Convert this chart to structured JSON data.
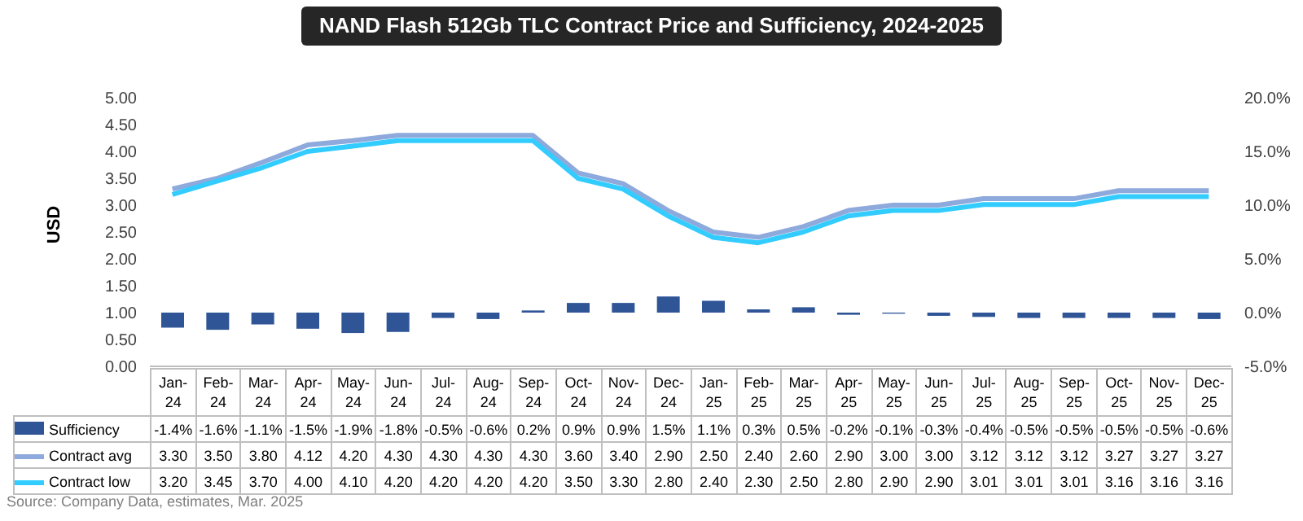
{
  "chart_data": {
    "type": "line",
    "title": "NAND Flash 512Gb TLC Contract Price and Sufficiency, 2024-2025",
    "ylabel": "USD",
    "categories": [
      "Jan-24",
      "Feb-24",
      "Mar-24",
      "Apr-24",
      "May-24",
      "Jun-24",
      "Jul-24",
      "Aug-24",
      "Sep-24",
      "Oct-24",
      "Nov-24",
      "Dec-24",
      "Jan-25",
      "Feb-25",
      "Mar-25",
      "Apr-25",
      "May-25",
      "Jun-25",
      "Jul-25",
      "Aug-25",
      "Sep-25",
      "Oct-25",
      "Nov-25",
      "Dec-25"
    ],
    "series": [
      {
        "name": "Sufficiency",
        "type": "bar",
        "axis": "y2",
        "color": "#2f5597",
        "values": [
          -1.4,
          -1.6,
          -1.1,
          -1.5,
          -1.9,
          -1.8,
          -0.5,
          -0.6,
          0.2,
          0.9,
          0.9,
          1.5,
          1.1,
          0.3,
          0.5,
          -0.2,
          -0.1,
          -0.3,
          -0.4,
          -0.5,
          -0.5,
          -0.5,
          -0.5,
          -0.6
        ],
        "value_labels": [
          "-1.4%",
          "-1.6%",
          "-1.1%",
          "-1.5%",
          "-1.9%",
          "-1.8%",
          "-0.5%",
          "-0.6%",
          "0.2%",
          "0.9%",
          "0.9%",
          "1.5%",
          "1.1%",
          "0.3%",
          "0.5%",
          "-0.2%",
          "-0.1%",
          "-0.3%",
          "-0.4%",
          "-0.5%",
          "-0.5%",
          "-0.5%",
          "-0.5%",
          "-0.6%"
        ]
      },
      {
        "name": "Contract avg",
        "color": "#8ea9db",
        "values": [
          3.3,
          3.5,
          3.8,
          4.12,
          4.2,
          4.3,
          4.3,
          4.3,
          4.3,
          3.6,
          3.4,
          2.9,
          2.5,
          2.4,
          2.6,
          2.9,
          3.0,
          3.0,
          3.12,
          3.12,
          3.12,
          3.27,
          3.27,
          3.27
        ],
        "value_labels": [
          "3.30",
          "3.50",
          "3.80",
          "4.12",
          "4.20",
          "4.30",
          "4.30",
          "4.30",
          "4.30",
          "3.60",
          "3.40",
          "2.90",
          "2.50",
          "2.40",
          "2.60",
          "2.90",
          "3.00",
          "3.00",
          "3.12",
          "3.12",
          "3.12",
          "3.27",
          "3.27",
          "3.27"
        ]
      },
      {
        "name": "Contract low",
        "color": "#33ccff",
        "values": [
          3.2,
          3.45,
          3.7,
          4.0,
          4.1,
          4.2,
          4.2,
          4.2,
          4.2,
          3.5,
          3.3,
          2.8,
          2.4,
          2.3,
          2.5,
          2.8,
          2.9,
          2.9,
          3.01,
          3.01,
          3.01,
          3.16,
          3.16,
          3.16
        ],
        "value_labels": [
          "3.20",
          "3.45",
          "3.70",
          "4.00",
          "4.10",
          "4.20",
          "4.20",
          "4.20",
          "4.20",
          "3.50",
          "3.30",
          "2.80",
          "2.40",
          "2.30",
          "2.50",
          "2.80",
          "2.90",
          "2.90",
          "3.01",
          "3.01",
          "3.01",
          "3.16",
          "3.16",
          "3.16"
        ]
      }
    ],
    "ylim": [
      0,
      5
    ],
    "yticks": [
      {
        "value": 0,
        "label": "0.00"
      },
      {
        "value": 0.5,
        "label": "0.50"
      },
      {
        "value": 1,
        "label": "1.00"
      },
      {
        "value": 1.5,
        "label": "1.50"
      },
      {
        "value": 2,
        "label": "2.00"
      },
      {
        "value": 2.5,
        "label": "2.50"
      },
      {
        "value": 3,
        "label": "3.00"
      },
      {
        "value": 3.5,
        "label": "3.50"
      },
      {
        "value": 4,
        "label": "4.00"
      },
      {
        "value": 4.5,
        "label": "4.50"
      },
      {
        "value": 5,
        "label": "5.00"
      }
    ],
    "y2lim": [
      -5,
      20
    ],
    "y2ticks": [
      {
        "value": -5,
        "label": "-5.0%"
      },
      {
        "value": 0,
        "label": "0.0%"
      },
      {
        "value": 5,
        "label": "5.0%"
      },
      {
        "value": 10,
        "label": "10.0%"
      },
      {
        "value": 15,
        "label": "15.0%"
      },
      {
        "value": 20,
        "label": "20.0%"
      }
    ],
    "grid": false,
    "legend": "bottom left",
    "marker": "none",
    "line_style": "solid",
    "annotations": [
      "Source: Company Data, estimates, Mar. 2025"
    ]
  }
}
